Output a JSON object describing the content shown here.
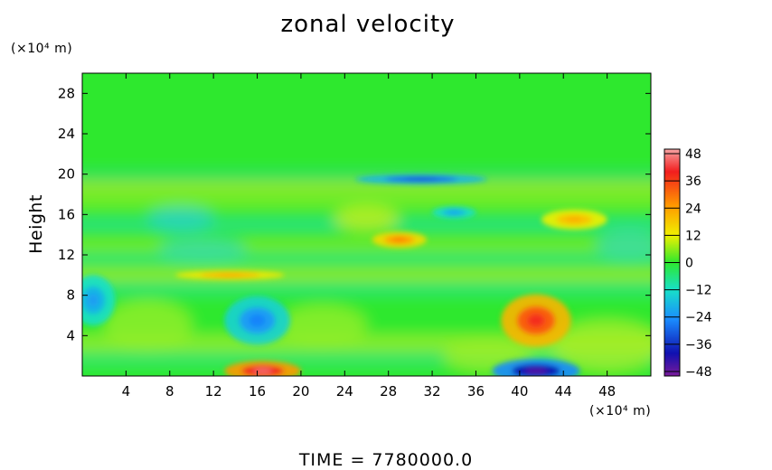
{
  "chart_data": {
    "type": "heatmap",
    "title": "zonal velocity",
    "ylabel": "Height",
    "x_unit": "(×10⁴ m)",
    "y_unit": "(×10⁴ m)",
    "xlim": [
      0,
      52
    ],
    "ylim": [
      0,
      30
    ],
    "x_ticks": [
      4,
      8,
      12,
      16,
      20,
      24,
      28,
      32,
      36,
      40,
      44,
      48
    ],
    "y_ticks": [
      4,
      8,
      12,
      16,
      20,
      24,
      28
    ],
    "colorbar": {
      "min": -50,
      "max": 50,
      "ticks": [
        48,
        36,
        24,
        12,
        0,
        -12,
        -24,
        -36,
        -48
      ]
    },
    "features": [
      {
        "x": 16.5,
        "y": 0.5,
        "value": 46
      },
      {
        "x": 41.5,
        "y": 0.5,
        "value": -46
      },
      {
        "x": 41.5,
        "y": 5.5,
        "value": 38
      },
      {
        "x": 16.0,
        "y": 5.5,
        "value": -26
      },
      {
        "x": 1.0,
        "y": 7.5,
        "value": -22
      },
      {
        "x": 31.0,
        "y": 19.5,
        "value": -34
      },
      {
        "x": 45.0,
        "y": 15.5,
        "value": 22
      },
      {
        "x": 29.0,
        "y": 13.5,
        "value": 28
      },
      {
        "x": 34.0,
        "y": 16.2,
        "value": -22
      },
      {
        "x": 13.5,
        "y": 10.0,
        "value": 24
      }
    ]
  },
  "footer": {
    "time_label": "TIME  =  7780000.0"
  }
}
